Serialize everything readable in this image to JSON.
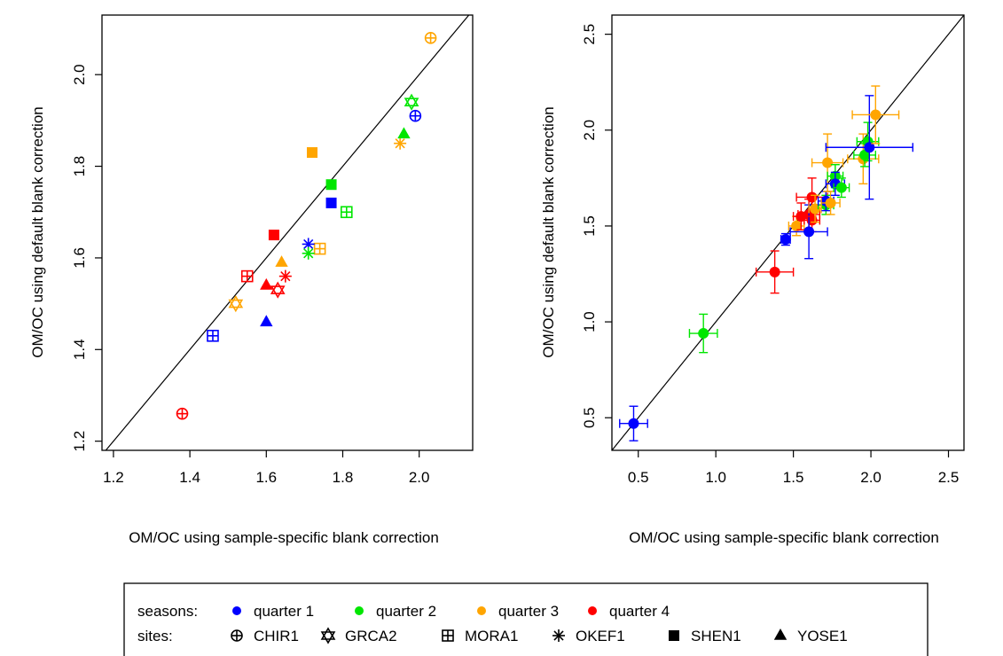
{
  "colors": {
    "quarter 1": "#0000ff",
    "quarter 2": "#00e600",
    "quarter 3": "#ffa500",
    "quarter 4": "#ff0000"
  },
  "chart_data": [
    {
      "type": "scatter",
      "xlabel": "OM/OC using sample-specific blank correction",
      "ylabel": "OM/OC using default blank correction",
      "xlim": [
        1.17,
        2.14
      ],
      "ylim": [
        1.18,
        2.13
      ],
      "xticks": [
        "1.2",
        "1.4",
        "1.6",
        "1.8",
        "2.0"
      ],
      "yticks": [
        "1.2",
        "1.4",
        "1.6",
        "1.8",
        "2.0"
      ],
      "reference_line": "1:1",
      "points": [
        {
          "site": "CHIR1",
          "season": "quarter 3",
          "x": 2.03,
          "y": 2.08
        },
        {
          "site": "CHIR1",
          "season": "quarter 1",
          "x": 1.99,
          "y": 1.91
        },
        {
          "site": "CHIR1",
          "season": "quarter 4",
          "x": 1.38,
          "y": 1.26
        },
        {
          "site": "GRCA2",
          "season": "quarter 2",
          "x": 1.98,
          "y": 1.94
        },
        {
          "site": "GRCA2",
          "season": "quarter 3",
          "x": 1.52,
          "y": 1.5
        },
        {
          "site": "GRCA2",
          "season": "quarter 4",
          "x": 1.63,
          "y": 1.53
        },
        {
          "site": "MORA1",
          "season": "quarter 2",
          "x": 1.81,
          "y": 1.7
        },
        {
          "site": "MORA1",
          "season": "quarter 3",
          "x": 1.74,
          "y": 1.62
        },
        {
          "site": "MORA1",
          "season": "quarter 4",
          "x": 1.55,
          "y": 1.56
        },
        {
          "site": "MORA1",
          "season": "quarter 1",
          "x": 1.46,
          "y": 1.43
        },
        {
          "site": "OKEF1",
          "season": "quarter 3",
          "x": 1.95,
          "y": 1.85
        },
        {
          "site": "OKEF1",
          "season": "quarter 1",
          "x": 1.71,
          "y": 1.63
        },
        {
          "site": "OKEF1",
          "season": "quarter 2",
          "x": 1.71,
          "y": 1.61
        },
        {
          "site": "OKEF1",
          "season": "quarter 4",
          "x": 1.65,
          "y": 1.56
        },
        {
          "site": "SHEN1",
          "season": "quarter 3",
          "x": 1.72,
          "y": 1.83
        },
        {
          "site": "SHEN1",
          "season": "quarter 2",
          "x": 1.77,
          "y": 1.76
        },
        {
          "site": "SHEN1",
          "season": "quarter 1",
          "x": 1.77,
          "y": 1.72
        },
        {
          "site": "SHEN1",
          "season": "quarter 4",
          "x": 1.62,
          "y": 1.65
        },
        {
          "site": "YOSE1",
          "season": "quarter 2",
          "x": 1.96,
          "y": 1.87
        },
        {
          "site": "YOSE1",
          "season": "quarter 3",
          "x": 1.64,
          "y": 1.59
        },
        {
          "site": "YOSE1",
          "season": "quarter 4",
          "x": 1.6,
          "y": 1.54
        },
        {
          "site": "YOSE1",
          "season": "quarter 1",
          "x": 1.6,
          "y": 1.46
        }
      ]
    },
    {
      "type": "scatter",
      "xlabel": "OM/OC using sample-specific blank correction",
      "ylabel": "OM/OC using default blank correction",
      "xlim": [
        0.33,
        2.6
      ],
      "ylim": [
        0.33,
        2.6
      ],
      "xticks": [
        "0.5",
        "1.0",
        "1.5",
        "2.0",
        "2.5"
      ],
      "yticks": [
        "0.5",
        "1.0",
        "1.5",
        "2.0",
        "2.5"
      ],
      "reference_line": "1:1",
      "error_bars": true,
      "points": [
        {
          "season": "quarter 1",
          "x": 0.47,
          "y": 0.47,
          "xerr": 0.09,
          "yerr": 0.09
        },
        {
          "season": "quarter 2",
          "x": 0.92,
          "y": 0.94,
          "xerr": 0.09,
          "yerr": 0.1
        },
        {
          "season": "quarter 4",
          "x": 1.38,
          "y": 1.26,
          "xerr": 0.12,
          "yerr": 0.11
        },
        {
          "season": "quarter 1",
          "x": 1.45,
          "y": 1.43,
          "xerr": 0.03,
          "yerr": 0.03
        },
        {
          "season": "quarter 3",
          "x": 1.52,
          "y": 1.5,
          "xerr": 0.05,
          "yerr": 0.05
        },
        {
          "season": "quarter 4",
          "x": 1.55,
          "y": 1.55,
          "xerr": 0.05,
          "yerr": 0.07
        },
        {
          "season": "quarter 4",
          "x": 1.6,
          "y": 1.56,
          "xerr": 0.07,
          "yerr": 0.08
        },
        {
          "season": "quarter 4",
          "x": 1.62,
          "y": 1.53,
          "xerr": 0.05,
          "yerr": 0.06
        },
        {
          "season": "quarter 1",
          "x": 1.6,
          "y": 1.47,
          "xerr": 0.12,
          "yerr": 0.14
        },
        {
          "season": "quarter 4",
          "x": 1.62,
          "y": 1.65,
          "xerr": 0.1,
          "yerr": 0.1
        },
        {
          "season": "quarter 3",
          "x": 1.64,
          "y": 1.59,
          "xerr": 0.04,
          "yerr": 0.07
        },
        {
          "season": "quarter 2",
          "x": 1.71,
          "y": 1.61,
          "xerr": 0.05,
          "yerr": 0.05
        },
        {
          "season": "quarter 1",
          "x": 1.71,
          "y": 1.63,
          "xerr": 0.05,
          "yerr": 0.05
        },
        {
          "season": "quarter 3",
          "x": 1.74,
          "y": 1.62,
          "xerr": 0.06,
          "yerr": 0.06
        },
        {
          "season": "quarter 3",
          "x": 1.72,
          "y": 1.83,
          "xerr": 0.1,
          "yerr": 0.15
        },
        {
          "season": "quarter 2",
          "x": 1.77,
          "y": 1.76,
          "xerr": 0.05,
          "yerr": 0.06
        },
        {
          "season": "quarter 1",
          "x": 1.77,
          "y": 1.72,
          "xerr": 0.06,
          "yerr": 0.06
        },
        {
          "season": "quarter 2",
          "x": 1.81,
          "y": 1.7,
          "xerr": 0.05,
          "yerr": 0.05
        },
        {
          "season": "quarter 3",
          "x": 1.95,
          "y": 1.85,
          "xerr": 0.1,
          "yerr": 0.13
        },
        {
          "season": "quarter 2",
          "x": 1.96,
          "y": 1.87,
          "xerr": 0.07,
          "yerr": 0.06
        },
        {
          "season": "quarter 2",
          "x": 1.98,
          "y": 1.94,
          "xerr": 0.07,
          "yerr": 0.1
        },
        {
          "season": "quarter 1",
          "x": 1.99,
          "y": 1.91,
          "xerr": 0.28,
          "yerr": 0.27
        },
        {
          "season": "quarter 3",
          "x": 2.03,
          "y": 2.08,
          "xerr": 0.15,
          "yerr": 0.15
        }
      ]
    }
  ],
  "legend": {
    "seasons_label": "seasons:",
    "sites_label": "sites:",
    "seasons": [
      "quarter 1",
      "quarter 2",
      "quarter 3",
      "quarter 4"
    ],
    "sites": [
      "CHIR1",
      "GRCA2",
      "MORA1",
      "OKEF1",
      "SHEN1",
      "YOSE1"
    ]
  }
}
